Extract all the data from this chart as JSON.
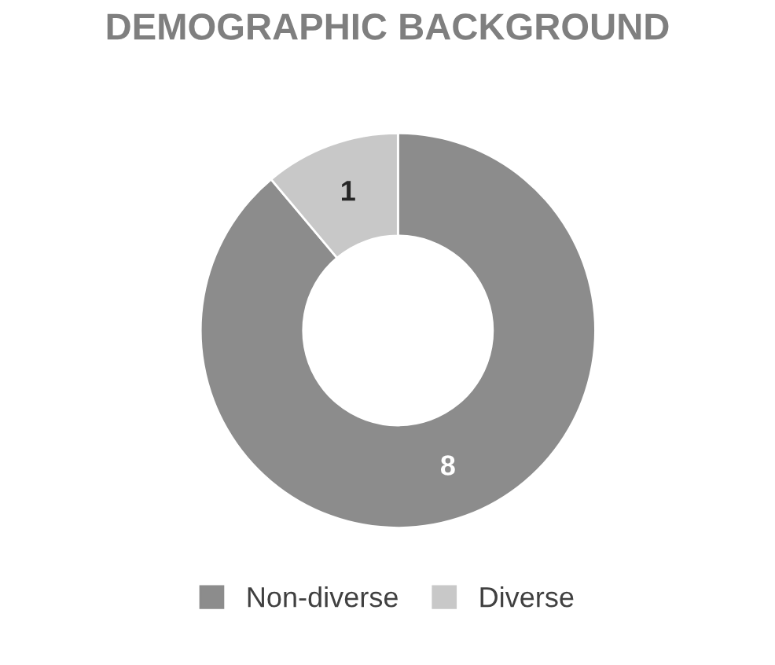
{
  "chart_data": {
    "type": "donut",
    "title": "DEMOGRAPHIC BACKGROUND",
    "categories": [
      "Non-diverse",
      "Diverse"
    ],
    "values": [
      8,
      1
    ],
    "colors": [
      "#8c8c8c",
      "#c8c8c8"
    ],
    "data_labels": true,
    "legend": "bottom"
  }
}
